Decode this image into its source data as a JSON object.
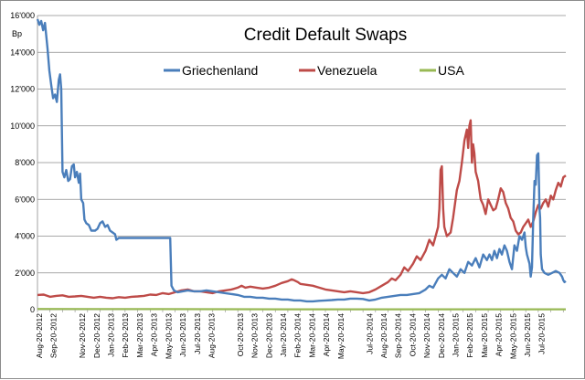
{
  "chart_data": {
    "type": "line",
    "title": "Credit Default Swaps",
    "ylabel": "Bp",
    "xlabel": "",
    "ylim": [
      0,
      16000
    ],
    "yticks": [
      "0",
      "2'000",
      "4'000",
      "6'000",
      "8'000",
      "10'000",
      "12'000",
      "14'000",
      "16'000"
    ],
    "ytick_values": [
      0,
      2000,
      4000,
      6000,
      8000,
      10000,
      12000,
      14000,
      16000
    ],
    "x_labels": [
      "Aug-20-2012",
      "Sep-20-2012",
      "Nov-20-2012",
      "Dec-20-2012",
      "Jan-20-2013",
      "Feb-20-2013",
      "Mar-20-2013",
      "Apr-20-2013",
      "May-20-2013",
      "Jun-20-2013",
      "Jul-20-2013",
      "Aug-20-2013",
      "Oct-20-2013",
      "Nov-20-2013",
      "Dec-20-2013",
      "Jan-20-2014",
      "Feb-20-2014",
      "Mar-20-2014",
      "Apr-20-2014",
      "May-20-2014",
      "Jul-20-2014",
      "Aug-20-2014",
      "Sep-20-2014",
      "Oct-20-2014",
      "Nov-20-2014",
      "Dec-20-2014",
      "Jan-20-2015",
      "Feb-20-2015",
      "Mar-20-2015",
      "Apr-20-2015",
      "May-20-2015",
      "Jun-20-2015",
      "Jul-20-2015"
    ],
    "x_label_months": [
      0,
      1,
      3,
      4,
      5,
      6,
      7,
      8,
      9,
      10,
      11,
      12,
      14,
      15,
      16,
      17,
      18,
      19,
      20,
      21,
      23,
      24,
      25,
      26,
      27,
      28,
      29,
      30,
      31,
      32,
      33,
      34,
      35
    ],
    "x_range_months": [
      0,
      36.8
    ],
    "grid": true,
    "legend_position": "top",
    "series": [
      {
        "name": "Griechenland",
        "color": "#4a7ebb",
        "points": [
          [
            0,
            15800
          ],
          [
            0.15,
            15500
          ],
          [
            0.3,
            15700
          ],
          [
            0.45,
            15200
          ],
          [
            0.6,
            15600
          ],
          [
            0.8,
            14200
          ],
          [
            0.95,
            13000
          ],
          [
            1.1,
            12200
          ],
          [
            1.25,
            11500
          ],
          [
            1.4,
            11700
          ],
          [
            1.55,
            11300
          ],
          [
            1.7,
            12500
          ],
          [
            1.8,
            12800
          ],
          [
            1.9,
            12000
          ],
          [
            2.0,
            7500
          ],
          [
            2.15,
            7200
          ],
          [
            2.3,
            7600
          ],
          [
            2.45,
            7000
          ],
          [
            2.6,
            7100
          ],
          [
            2.75,
            7800
          ],
          [
            2.9,
            7900
          ],
          [
            3.0,
            7200
          ],
          [
            3.15,
            7500
          ],
          [
            3.3,
            6900
          ],
          [
            3.4,
            7400
          ],
          [
            3.5,
            6000
          ],
          [
            3.65,
            5800
          ],
          [
            3.75,
            4900
          ],
          [
            3.9,
            4700
          ],
          [
            4.1,
            4600
          ],
          [
            4.3,
            4300
          ],
          [
            4.6,
            4300
          ],
          [
            4.8,
            4400
          ],
          [
            5.0,
            4700
          ],
          [
            5.2,
            4800
          ],
          [
            5.4,
            4500
          ],
          [
            5.6,
            4600
          ],
          [
            5.8,
            4300
          ],
          [
            6.0,
            4200
          ],
          [
            6.2,
            4100
          ],
          [
            6.3,
            3800
          ],
          [
            6.5,
            3900
          ],
          [
            7.0,
            3900
          ],
          [
            8.0,
            3900
          ],
          [
            9.0,
            3900
          ],
          [
            10.0,
            3900
          ],
          [
            10.6,
            3900
          ],
          [
            10.7,
            1300
          ],
          [
            10.9,
            1050
          ],
          [
            11.2,
            950
          ],
          [
            11.6,
            1000
          ],
          [
            12.0,
            1050
          ],
          [
            12.5,
            1000
          ],
          [
            13.0,
            1000
          ],
          [
            13.5,
            1050
          ],
          [
            14.0,
            1000
          ],
          [
            14.5,
            950
          ],
          [
            15.0,
            900
          ],
          [
            15.5,
            850
          ],
          [
            16.0,
            800
          ],
          [
            16.5,
            700
          ],
          [
            17.0,
            700
          ],
          [
            17.5,
            650
          ],
          [
            18.0,
            650
          ],
          [
            18.5,
            600
          ],
          [
            19.0,
            600
          ],
          [
            19.5,
            550
          ],
          [
            20.0,
            550
          ],
          [
            20.5,
            500
          ],
          [
            21.0,
            500
          ],
          [
            21.5,
            450
          ],
          [
            22.0,
            450
          ],
          [
            22.5,
            480
          ],
          [
            23.0,
            500
          ],
          [
            23.5,
            520
          ],
          [
            24.0,
            550
          ],
          [
            24.5,
            550
          ],
          [
            25.0,
            600
          ],
          [
            25.5,
            600
          ],
          [
            26.0,
            580
          ],
          [
            26.5,
            500
          ],
          [
            27.0,
            550
          ],
          [
            27.5,
            650
          ],
          [
            28.0,
            700
          ],
          [
            28.5,
            750
          ],
          [
            29.0,
            800
          ],
          [
            29.5,
            800
          ],
          [
            30.0,
            850
          ],
          [
            30.5,
            900
          ],
          [
            31.0,
            1100
          ],
          [
            31.3,
            1300
          ],
          [
            31.6,
            1200
          ],
          [
            32.0,
            1700
          ],
          [
            32.3,
            1900
          ],
          [
            32.6,
            1700
          ],
          [
            32.9,
            2200
          ],
          [
            33.2,
            2000
          ],
          [
            33.5,
            1800
          ],
          [
            33.8,
            2200
          ],
          [
            34.1,
            2000
          ],
          [
            34.4,
            2600
          ],
          [
            34.7,
            2400
          ],
          [
            35.0,
            2800
          ],
          [
            35.3,
            2300
          ],
          [
            35.6,
            3000
          ],
          [
            35.9,
            2700
          ],
          [
            36.1,
            3000
          ],
          [
            36.3,
            2700
          ],
          [
            36.5,
            3200
          ],
          [
            36.7,
            2800
          ],
          [
            36.9,
            3300
          ],
          [
            37.1,
            3000
          ],
          [
            37.3,
            3500
          ],
          [
            37.5,
            3200
          ],
          [
            37.7,
            2600
          ],
          [
            37.9,
            2200
          ],
          [
            38.1,
            3500
          ],
          [
            38.3,
            3200
          ],
          [
            38.5,
            4000
          ],
          [
            38.7,
            3800
          ],
          [
            38.9,
            4200
          ],
          [
            39.0,
            3400
          ],
          [
            39.1,
            3000
          ],
          [
            39.3,
            2500
          ],
          [
            39.4,
            1800
          ],
          [
            39.5,
            2300
          ],
          [
            39.6,
            5000
          ],
          [
            39.7,
            7000
          ],
          [
            39.8,
            6800
          ],
          [
            39.9,
            8400
          ],
          [
            40.0,
            8500
          ],
          [
            40.05,
            7000
          ],
          [
            40.1,
            5500
          ],
          [
            40.15,
            5000
          ],
          [
            40.2,
            3000
          ],
          [
            40.3,
            2200
          ],
          [
            40.5,
            2000
          ],
          [
            40.8,
            1900
          ],
          [
            41.1,
            2000
          ],
          [
            41.4,
            2100
          ],
          [
            41.7,
            2000
          ],
          [
            41.9,
            1800
          ],
          [
            42.0,
            1600
          ],
          [
            42.1,
            1500
          ],
          [
            42.2,
            1550
          ]
        ]
      },
      {
        "name": "Venezuela",
        "color": "#be4b48",
        "points": [
          [
            0,
            800
          ],
          [
            0.5,
            820
          ],
          [
            1.0,
            700
          ],
          [
            1.5,
            750
          ],
          [
            2.0,
            780
          ],
          [
            2.5,
            700
          ],
          [
            3.0,
            720
          ],
          [
            3.5,
            750
          ],
          [
            4.0,
            700
          ],
          [
            4.5,
            650
          ],
          [
            5.0,
            700
          ],
          [
            5.5,
            650
          ],
          [
            6.0,
            620
          ],
          [
            6.5,
            680
          ],
          [
            7.0,
            650
          ],
          [
            7.5,
            700
          ],
          [
            8.0,
            720
          ],
          [
            8.5,
            750
          ],
          [
            9.0,
            820
          ],
          [
            9.5,
            800
          ],
          [
            10.0,
            900
          ],
          [
            10.5,
            850
          ],
          [
            11.0,
            950
          ],
          [
            11.5,
            1050
          ],
          [
            12.0,
            1100
          ],
          [
            12.5,
            1000
          ],
          [
            13.0,
            1000
          ],
          [
            13.5,
            950
          ],
          [
            14.0,
            900
          ],
          [
            14.5,
            1000
          ],
          [
            15.0,
            1050
          ],
          [
            15.5,
            1100
          ],
          [
            16.0,
            1200
          ],
          [
            16.3,
            1300
          ],
          [
            16.6,
            1200
          ],
          [
            17.0,
            1250
          ],
          [
            17.5,
            1200
          ],
          [
            18.0,
            1150
          ],
          [
            18.5,
            1200
          ],
          [
            19.0,
            1300
          ],
          [
            19.5,
            1450
          ],
          [
            20.0,
            1550
          ],
          [
            20.3,
            1650
          ],
          [
            20.5,
            1600
          ],
          [
            20.8,
            1500
          ],
          [
            21.0,
            1400
          ],
          [
            21.5,
            1350
          ],
          [
            22.0,
            1300
          ],
          [
            22.5,
            1200
          ],
          [
            23.0,
            1100
          ],
          [
            23.5,
            1050
          ],
          [
            24.0,
            1000
          ],
          [
            24.5,
            950
          ],
          [
            25.0,
            1000
          ],
          [
            25.5,
            950
          ],
          [
            26.0,
            900
          ],
          [
            26.5,
            950
          ],
          [
            27.0,
            1100
          ],
          [
            27.5,
            1300
          ],
          [
            28.0,
            1500
          ],
          [
            28.3,
            1700
          ],
          [
            28.6,
            1600
          ],
          [
            29.0,
            1900
          ],
          [
            29.3,
            2300
          ],
          [
            29.6,
            2100
          ],
          [
            30.0,
            2500
          ],
          [
            30.3,
            2900
          ],
          [
            30.6,
            2700
          ],
          [
            31.0,
            3200
          ],
          [
            31.3,
            3800
          ],
          [
            31.6,
            3500
          ],
          [
            31.8,
            4000
          ],
          [
            32.0,
            4500
          ],
          [
            32.1,
            5500
          ],
          [
            32.2,
            7600
          ],
          [
            32.3,
            7800
          ],
          [
            32.4,
            5500
          ],
          [
            32.5,
            4500
          ],
          [
            32.7,
            4000
          ],
          [
            33.0,
            4200
          ],
          [
            33.2,
            5000
          ],
          [
            33.5,
            6500
          ],
          [
            33.7,
            7000
          ],
          [
            33.9,
            8000
          ],
          [
            34.1,
            9200
          ],
          [
            34.3,
            9800
          ],
          [
            34.4,
            8800
          ],
          [
            34.5,
            10000
          ],
          [
            34.6,
            10300
          ],
          [
            34.7,
            8000
          ],
          [
            34.8,
            9000
          ],
          [
            34.9,
            8500
          ],
          [
            35.0,
            7500
          ],
          [
            35.2,
            7000
          ],
          [
            35.4,
            6000
          ],
          [
            35.6,
            5700
          ],
          [
            35.8,
            5200
          ],
          [
            36.0,
            6000
          ],
          [
            36.2,
            5700
          ],
          [
            36.4,
            5400
          ],
          [
            36.6,
            5500
          ],
          [
            36.8,
            6000
          ],
          [
            37.0,
            6600
          ],
          [
            37.2,
            6400
          ],
          [
            37.4,
            5800
          ],
          [
            37.6,
            5500
          ],
          [
            37.8,
            5000
          ],
          [
            38.0,
            4800
          ],
          [
            38.2,
            4300
          ],
          [
            38.4,
            4100
          ],
          [
            38.6,
            4200
          ],
          [
            38.8,
            4500
          ],
          [
            39.0,
            4700
          ],
          [
            39.2,
            4900
          ],
          [
            39.4,
            4500
          ],
          [
            39.6,
            4800
          ],
          [
            39.8,
            5300
          ],
          [
            40.0,
            5700
          ],
          [
            40.2,
            5500
          ],
          [
            40.4,
            5800
          ],
          [
            40.6,
            6000
          ],
          [
            40.8,
            5600
          ],
          [
            41.0,
            6200
          ],
          [
            41.2,
            6000
          ],
          [
            41.4,
            6500
          ],
          [
            41.6,
            6900
          ],
          [
            41.8,
            6700
          ],
          [
            42.0,
            7200
          ],
          [
            42.2,
            7300
          ]
        ]
      },
      {
        "name": "USA",
        "color": "#98b954",
        "points": [
          [
            0,
            40
          ],
          [
            5,
            35
          ],
          [
            10,
            30
          ],
          [
            15,
            25
          ],
          [
            20,
            20
          ],
          [
            25,
            20
          ],
          [
            30,
            20
          ],
          [
            35,
            20
          ],
          [
            40,
            20
          ],
          [
            42.2,
            20
          ]
        ]
      }
    ]
  }
}
